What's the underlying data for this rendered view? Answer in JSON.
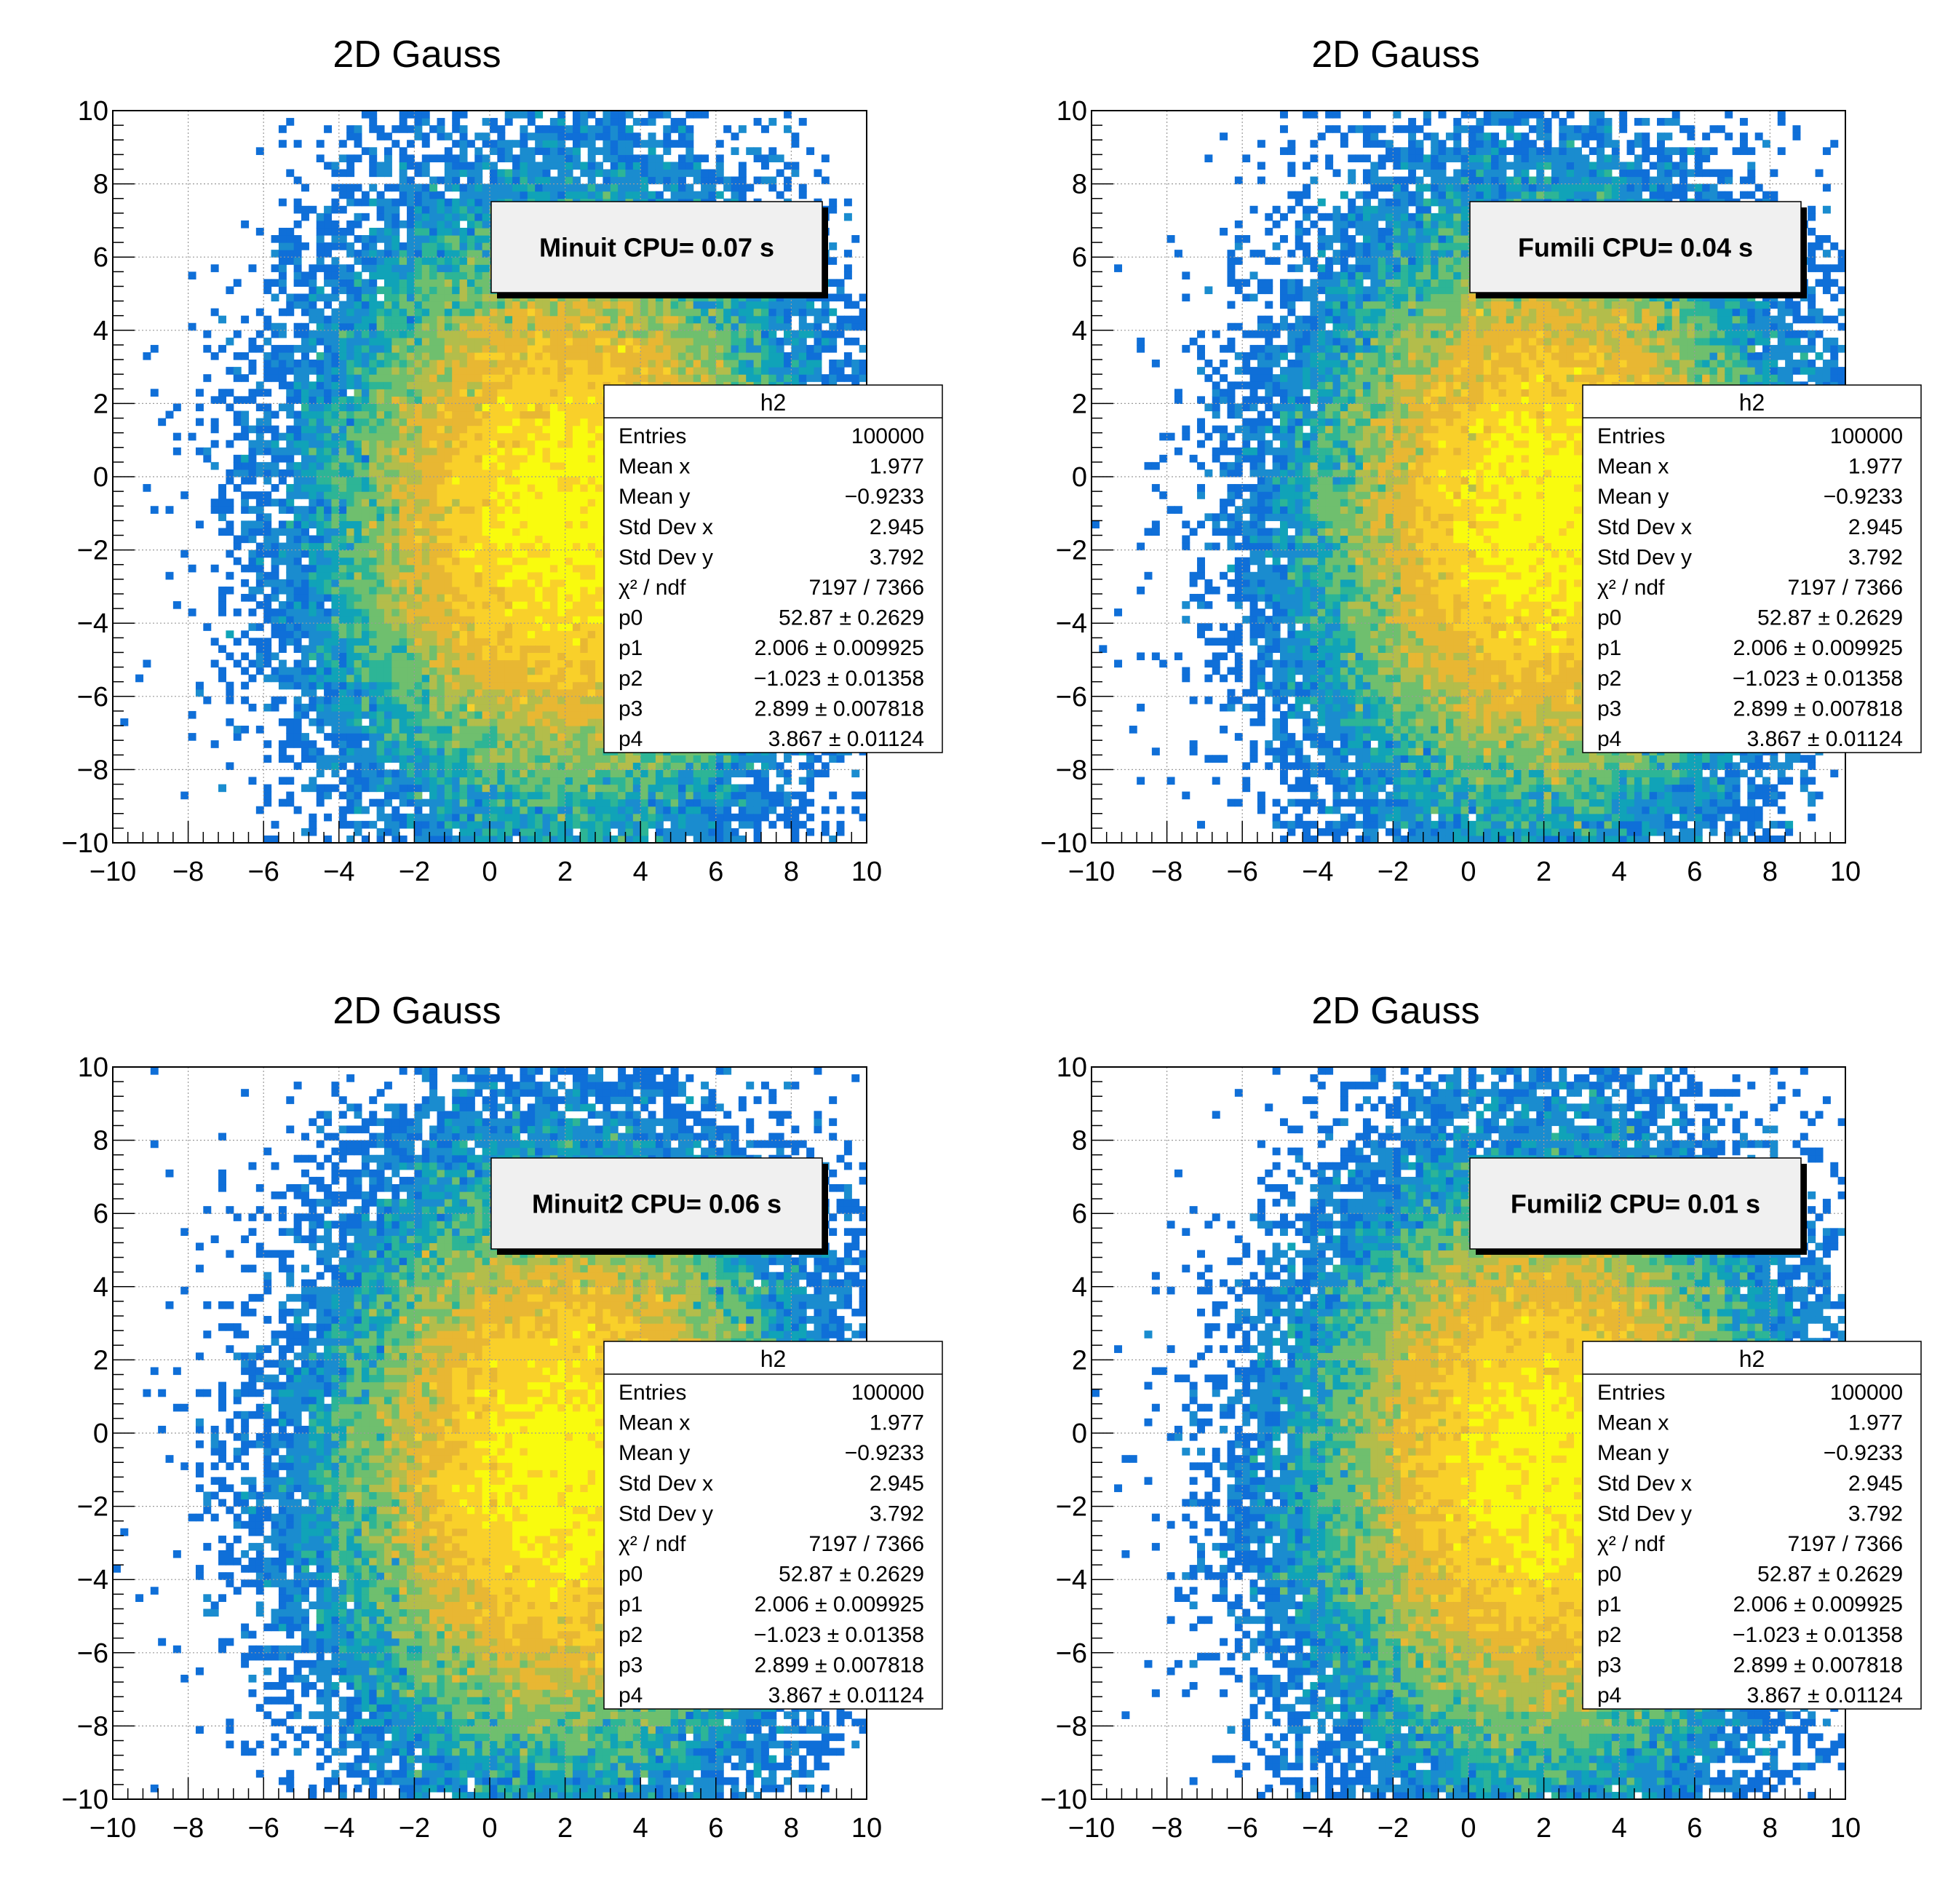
{
  "colors": {
    "palette": [
      "#352a87",
      "#1e4bc8",
      "#0f6fd8",
      "#1a8ccf",
      "#10a3b8",
      "#2db596",
      "#6fbf6e",
      "#b3bd4b",
      "#e8b733",
      "#f9d02a",
      "#f9fb0e"
    ],
    "grid": "#9a9a9a",
    "frame": "#000000",
    "cpu_box_fill": "#f0f0f0"
  },
  "panels": [
    {
      "title": "2D Gauss",
      "cpu_label": "Minuit CPU= 0.07 s",
      "stats": {
        "name": "h2",
        "rows": [
          {
            "label": "Entries",
            "value": "100000"
          },
          {
            "label": "Mean x",
            "value": "1.977"
          },
          {
            "label": "Mean y",
            "value": "−0.9233"
          },
          {
            "label": "Std Dev x",
            "value": "2.945"
          },
          {
            "label": "Std Dev y",
            "value": "3.792"
          },
          {
            "label": "χ² / ndf",
            "value": "7197 / 7366"
          },
          {
            "label": "p0",
            "value": "52.87 ± 0.2629"
          },
          {
            "label": "p1",
            "value": "2.006 ± 0.009925"
          },
          {
            "label": "p2",
            "value": "−1.023 ± 0.01358"
          },
          {
            "label": "p3",
            "value": "2.899 ± 0.007818"
          },
          {
            "label": "p4",
            "value": "3.867 ± 0.01124"
          }
        ]
      }
    },
    {
      "title": "2D Gauss",
      "cpu_label": "Fumili CPU= 0.04 s",
      "stats": {
        "name": "h2",
        "rows": [
          {
            "label": "Entries",
            "value": "100000"
          },
          {
            "label": "Mean x",
            "value": "1.977"
          },
          {
            "label": "Mean y",
            "value": "−0.9233"
          },
          {
            "label": "Std Dev x",
            "value": "2.945"
          },
          {
            "label": "Std Dev y",
            "value": "3.792"
          },
          {
            "label": "χ² / ndf",
            "value": "7197 / 7366"
          },
          {
            "label": "p0",
            "value": "52.87 ± 0.2629"
          },
          {
            "label": "p1",
            "value": "2.006 ± 0.009925"
          },
          {
            "label": "p2",
            "value": "−1.023 ± 0.01358"
          },
          {
            "label": "p3",
            "value": "2.899 ± 0.007818"
          },
          {
            "label": "p4",
            "value": "3.867 ± 0.01124"
          }
        ]
      }
    },
    {
      "title": "2D Gauss",
      "cpu_label": "Minuit2 CPU= 0.06 s",
      "stats": {
        "name": "h2",
        "rows": [
          {
            "label": "Entries",
            "value": "100000"
          },
          {
            "label": "Mean x",
            "value": "1.977"
          },
          {
            "label": "Mean y",
            "value": "−0.9233"
          },
          {
            "label": "Std Dev x",
            "value": "2.945"
          },
          {
            "label": "Std Dev y",
            "value": "3.792"
          },
          {
            "label": "χ² / ndf",
            "value": "7197 / 7366"
          },
          {
            "label": "p0",
            "value": "52.87 ± 0.2629"
          },
          {
            "label": "p1",
            "value": "2.006 ± 0.009925"
          },
          {
            "label": "p2",
            "value": "−1.023 ± 0.01358"
          },
          {
            "label": "p3",
            "value": "2.899 ± 0.007818"
          },
          {
            "label": "p4",
            "value": "3.867 ± 0.01124"
          }
        ]
      }
    },
    {
      "title": "2D Gauss",
      "cpu_label": "Fumili2 CPU= 0.01 s",
      "stats": {
        "name": "h2",
        "rows": [
          {
            "label": "Entries",
            "value": "100000"
          },
          {
            "label": "Mean x",
            "value": "1.977"
          },
          {
            "label": "Mean y",
            "value": "−0.9233"
          },
          {
            "label": "Std Dev x",
            "value": "2.945"
          },
          {
            "label": "Std Dev y",
            "value": "3.792"
          },
          {
            "label": "χ² / ndf",
            "value": "7197 / 7366"
          },
          {
            "label": "p0",
            "value": "52.87 ± 0.2629"
          },
          {
            "label": "p1",
            "value": "2.006 ± 0.009925"
          },
          {
            "label": "p2",
            "value": "−1.023 ± 0.01358"
          },
          {
            "label": "p3",
            "value": "2.899 ± 0.007818"
          },
          {
            "label": "p4",
            "value": "3.867 ± 0.01124"
          }
        ]
      }
    }
  ],
  "chart_data": [
    {
      "type": "heatmap",
      "title": "2D Gauss",
      "xlim": [
        -10,
        10
      ],
      "ylim": [
        -10,
        10
      ],
      "xticks": [
        "−10",
        "−8",
        "−6",
        "−4",
        "−2",
        "0",
        "2",
        "4",
        "6",
        "8",
        "10"
      ],
      "yticks": [
        "−10",
        "−8",
        "−6",
        "−4",
        "−2",
        "0",
        "2",
        "4",
        "6",
        "8",
        "10"
      ],
      "grid": true,
      "bins": [
        100,
        100
      ],
      "entries": 100000,
      "mean": [
        1.977,
        -0.9233
      ],
      "std_dev": [
        2.945,
        3.792
      ],
      "fit_params": {
        "p0": 52.87,
        "p1": 2.006,
        "p2": -1.023,
        "p3": 2.899,
        "p4": 3.867
      },
      "annotation": "Minuit CPU= 0.07 s"
    },
    {
      "type": "heatmap",
      "title": "2D Gauss",
      "xlim": [
        -10,
        10
      ],
      "ylim": [
        -10,
        10
      ],
      "xticks": [
        "−10",
        "−8",
        "−6",
        "−4",
        "−2",
        "0",
        "2",
        "4",
        "6",
        "8",
        "10"
      ],
      "yticks": [
        "−10",
        "−8",
        "−6",
        "−4",
        "−2",
        "0",
        "2",
        "4",
        "6",
        "8",
        "10"
      ],
      "grid": true,
      "bins": [
        100,
        100
      ],
      "entries": 100000,
      "mean": [
        1.977,
        -0.9233
      ],
      "std_dev": [
        2.945,
        3.792
      ],
      "fit_params": {
        "p0": 52.87,
        "p1": 2.006,
        "p2": -1.023,
        "p3": 2.899,
        "p4": 3.867
      },
      "annotation": "Fumili CPU= 0.04 s"
    },
    {
      "type": "heatmap",
      "title": "2D Gauss",
      "xlim": [
        -10,
        10
      ],
      "ylim": [
        -10,
        10
      ],
      "xticks": [
        "−10",
        "−8",
        "−6",
        "−4",
        "−2",
        "0",
        "2",
        "4",
        "6",
        "8",
        "10"
      ],
      "yticks": [
        "−10",
        "−8",
        "−6",
        "−4",
        "−2",
        "0",
        "2",
        "4",
        "6",
        "8",
        "10"
      ],
      "grid": true,
      "bins": [
        100,
        100
      ],
      "entries": 100000,
      "mean": [
        1.977,
        -0.9233
      ],
      "std_dev": [
        2.945,
        3.792
      ],
      "fit_params": {
        "p0": 52.87,
        "p1": 2.006,
        "p2": -1.023,
        "p3": 2.899,
        "p4": 3.867
      },
      "annotation": "Minuit2 CPU= 0.06 s"
    },
    {
      "type": "heatmap",
      "title": "2D Gauss",
      "xlim": [
        -10,
        10
      ],
      "ylim": [
        -10,
        10
      ],
      "xticks": [
        "−10",
        "−8",
        "−6",
        "−4",
        "−2",
        "0",
        "2",
        "4",
        "6",
        "8",
        "10"
      ],
      "yticks": [
        "−10",
        "−8",
        "−6",
        "−4",
        "−2",
        "0",
        "2",
        "4",
        "6",
        "8",
        "10"
      ],
      "grid": true,
      "bins": [
        100,
        100
      ],
      "entries": 100000,
      "mean": [
        1.977,
        -0.9233
      ],
      "std_dev": [
        2.945,
        3.792
      ],
      "fit_params": {
        "p0": 52.87,
        "p1": 2.006,
        "p2": -1.023,
        "p3": 2.899,
        "p4": 3.867
      },
      "annotation": "Fumili2 CPU= 0.01 s"
    }
  ]
}
